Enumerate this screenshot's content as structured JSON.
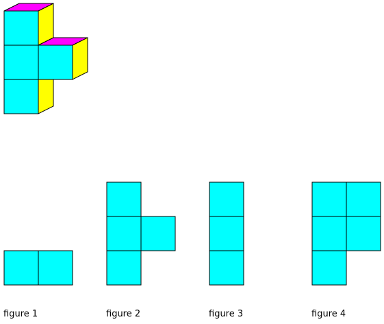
{
  "colors": {
    "front": "#00ffff",
    "top": "#ff00ff",
    "side": "#ffff00",
    "stroke": "#000000",
    "background": "#ffffff"
  },
  "solid": {
    "cubes": [
      {
        "col": 0,
        "row": 0
      },
      {
        "col": 0,
        "row": 1
      },
      {
        "col": 1,
        "row": 1
      },
      {
        "col": 0,
        "row": 2
      }
    ]
  },
  "figures": [
    {
      "label": "figure 1",
      "squares": [
        {
          "col": 0,
          "row": 0
        },
        {
          "col": 1,
          "row": 0
        }
      ]
    },
    {
      "label": "figure 2",
      "squares": [
        {
          "col": 0,
          "row": 0
        },
        {
          "col": 0,
          "row": 1
        },
        {
          "col": 1,
          "row": 1
        },
        {
          "col": 0,
          "row": 2
        }
      ]
    },
    {
      "label": "figure 3",
      "squares": [
        {
          "col": 0,
          "row": 0
        },
        {
          "col": 0,
          "row": 1
        },
        {
          "col": 0,
          "row": 2
        }
      ]
    },
    {
      "label": "figure 4",
      "squares": [
        {
          "col": 0,
          "row": 0
        },
        {
          "col": 1,
          "row": 0
        },
        {
          "col": 0,
          "row": 1
        },
        {
          "col": 1,
          "row": 1
        },
        {
          "col": 0,
          "row": 2
        }
      ]
    }
  ]
}
